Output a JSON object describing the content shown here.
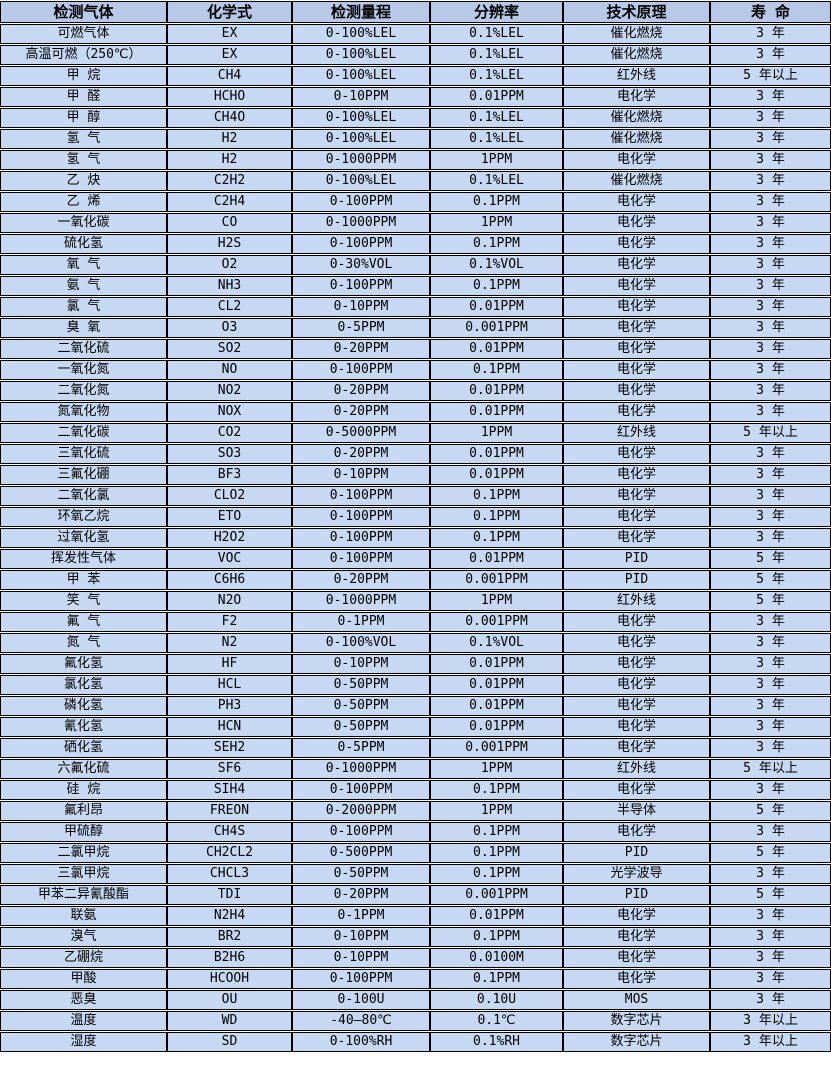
{
  "colors": {
    "header_bg": "#b7c9e6",
    "row_bg": "#c7d9f2",
    "border": "#000000",
    "text": "#000000"
  },
  "table": {
    "columns": [
      "检测气体",
      "化学式",
      "检测量程",
      "分辨率",
      "技术原理",
      "寿 命"
    ],
    "rows": [
      [
        "可燃气体",
        "EX",
        "0-100%LEL",
        "0.1%LEL",
        "催化燃烧",
        "3 年"
      ],
      [
        "高温可燃（250℃）",
        "EX",
        "0-100%LEL",
        "0.1%LEL",
        "催化燃烧",
        "3 年"
      ],
      [
        "甲 烷",
        "CH4",
        "0-100%LEL",
        "0.1%LEL",
        "红外线",
        "5 年以上"
      ],
      [
        "甲 醛",
        "HCHO",
        "0-10PPM",
        "0.01PPM",
        "电化学",
        "3 年"
      ],
      [
        "甲 醇",
        "CH4O",
        "0-100%LEL",
        "0.1%LEL",
        "催化燃烧",
        "3 年"
      ],
      [
        "氢 气",
        "H2",
        "0-100%LEL",
        "0.1%LEL",
        "催化燃烧",
        "3 年"
      ],
      [
        "氢 气",
        "H2",
        "0-1000PPM",
        "1PPM",
        "电化学",
        "3 年"
      ],
      [
        "乙 炔",
        "C2H2",
        "0-100%LEL",
        "0.1%LEL",
        "催化燃烧",
        "3 年"
      ],
      [
        "乙 烯",
        "C2H4",
        "0-100PPM",
        "0.1PPM",
        "电化学",
        "3 年"
      ],
      [
        "一氧化碳",
        "CO",
        "0-1000PPM",
        "1PPM",
        "电化学",
        "3 年"
      ],
      [
        "硫化氢",
        "H2S",
        "0-100PPM",
        "0.1PPM",
        "电化学",
        "3 年"
      ],
      [
        "氧 气",
        "O2",
        "0-30%VOL",
        "0.1%VOL",
        "电化学",
        "3 年"
      ],
      [
        "氨 气",
        "NH3",
        "0-100PPM",
        "0.1PPM",
        "电化学",
        "3 年"
      ],
      [
        "氯 气",
        "CL2",
        "0-10PPM",
        "0.01PPM",
        "电化学",
        "3 年"
      ],
      [
        "臭 氧",
        "O3",
        "0-5PPM",
        "0.001PPM",
        "电化学",
        "3 年"
      ],
      [
        "二氧化硫",
        "SO2",
        "0-20PPM",
        "0.01PPM",
        "电化学",
        "3 年"
      ],
      [
        "一氧化氮",
        "NO",
        "0-100PPM",
        "0.1PPM",
        "电化学",
        "3 年"
      ],
      [
        "二氧化氮",
        "NO2",
        "0-20PPM",
        "0.01PPM",
        "电化学",
        "3 年"
      ],
      [
        "氮氧化物",
        "NOX",
        "0-20PPM",
        "0.01PPM",
        "电化学",
        "3 年"
      ],
      [
        "二氧化碳",
        "CO2",
        "0-5000PPM",
        "1PPM",
        "红外线",
        "5 年以上"
      ],
      [
        "三氧化硫",
        "SO3",
        "0-20PPM",
        "0.01PPM",
        "电化学",
        "3 年"
      ],
      [
        "三氟化硼",
        "BF3",
        "0-10PPM",
        "0.01PPM",
        "电化学",
        "3 年"
      ],
      [
        "二氧化氯",
        "CLO2",
        "0-100PPM",
        "0.1PPM",
        "电化学",
        "3 年"
      ],
      [
        "环氧乙烷",
        "ETO",
        "0-100PPM",
        "0.1PPM",
        "电化学",
        "3 年"
      ],
      [
        "过氧化氢",
        "H2O2",
        "0-100PPM",
        "0.1PPM",
        "电化学",
        "3 年"
      ],
      [
        "挥发性气体",
        "VOC",
        "0-100PPM",
        "0.01PPM",
        "PID",
        "5 年"
      ],
      [
        "甲 苯",
        "C6H6",
        "0-20PPM",
        "0.001PPM",
        "PID",
        "5 年"
      ],
      [
        "笑 气",
        "N2O",
        "0-1000PPM",
        "1PPM",
        "红外线",
        "5 年"
      ],
      [
        "氟 气",
        "F2",
        "0-1PPM",
        "0.001PPM",
        "电化学",
        "3 年"
      ],
      [
        "氮 气",
        "N2",
        "0-100%VOL",
        "0.1%VOL",
        "电化学",
        "3 年"
      ],
      [
        "氟化氢",
        "HF",
        "0-10PPM",
        "0.01PPM",
        "电化学",
        "3 年"
      ],
      [
        "氯化氢",
        "HCL",
        "0-50PPM",
        "0.01PPM",
        "电化学",
        "3 年"
      ],
      [
        "磷化氢",
        "PH3",
        "0-50PPM",
        "0.01PPM",
        "电化学",
        "3 年"
      ],
      [
        "氰化氢",
        "HCN",
        "0-50PPM",
        "0.01PPM",
        "电化学",
        "3 年"
      ],
      [
        "硒化氢",
        "SEH2",
        "0-5PPM",
        "0.001PPM",
        "电化学",
        "3 年"
      ],
      [
        "六氟化硫",
        "SF6",
        "0-1000PPM",
        "1PPM",
        "红外线",
        "5 年以上"
      ],
      [
        "硅 烷",
        "SIH4",
        "0-100PPM",
        "0.1PPM",
        "电化学",
        "3 年"
      ],
      [
        "氟利昂",
        "FREON",
        "0-2000PPM",
        "1PPM",
        "半导体",
        "5 年"
      ],
      [
        "甲硫醇",
        "CH4S",
        "0-100PPM",
        "0.1PPM",
        "电化学",
        "3 年"
      ],
      [
        "二氯甲烷",
        "CH2CL2",
        "0-500PPM",
        "0.1PPM",
        "PID",
        "5 年"
      ],
      [
        "三氯甲烷",
        "CHCL3",
        "0-50PPM",
        "0.1PPM",
        "光学波导",
        "3 年"
      ],
      [
        "甲苯二异氰酸酯",
        "TDI",
        "0-20PPM",
        "0.001PPM",
        "PID",
        "5 年"
      ],
      [
        "联氨",
        "N2H4",
        "0-1PPM",
        "0.01PPM",
        "电化学",
        "3 年"
      ],
      [
        "溴气",
        "BR2",
        "0-10PPM",
        "0.1PPM",
        "电化学",
        "3 年"
      ],
      [
        "乙硼烷",
        "B2H6",
        "0-10PPM",
        "0.0100M",
        "电化学",
        "3 年"
      ],
      [
        "甲酸",
        "HCOOH",
        "0-100PPM",
        "0.1PPM",
        "电化学",
        "3 年"
      ],
      [
        "恶臭",
        "OU",
        "0-100U",
        "0.10U",
        "MOS",
        "3 年"
      ],
      [
        "温度",
        "WD",
        "-40—80℃",
        "0.1℃",
        "数字芯片",
        "3 年以上"
      ],
      [
        "湿度",
        "SD",
        "0-100%RH",
        "0.1%RH",
        "数字芯片",
        "3 年以上"
      ]
    ]
  }
}
